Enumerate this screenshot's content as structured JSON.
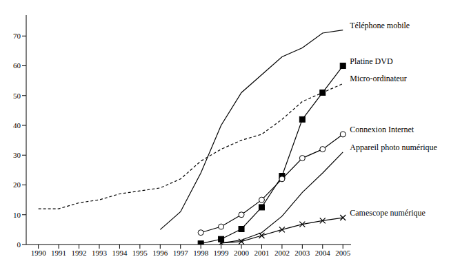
{
  "chart_data": {
    "type": "line",
    "x": [
      1990,
      1991,
      1992,
      1993,
      1994,
      1995,
      1996,
      1997,
      1998,
      1999,
      2000,
      2001,
      2002,
      2003,
      2004,
      2005
    ],
    "xlim": [
      1989.4,
      2005.4
    ],
    "xticks": [
      1990,
      1991,
      1992,
      1993,
      1994,
      1995,
      1996,
      1997,
      1998,
      1999,
      2000,
      2001,
      2002,
      2003,
      2004,
      2005
    ],
    "ylim": [
      0,
      77
    ],
    "yticks": [
      0,
      10,
      20,
      30,
      40,
      50,
      60,
      70
    ],
    "grid": false,
    "series": [
      {
        "name": "Téléphone mobile",
        "color": "#000000",
        "marker": "none",
        "line_style": "solid",
        "values": [
          null,
          null,
          null,
          null,
          null,
          null,
          5,
          11,
          24,
          40,
          51,
          57,
          63,
          66,
          71,
          72
        ]
      },
      {
        "name": "Platine DVD",
        "color": "#000000",
        "marker": "square",
        "line_style": "solid",
        "values": [
          null,
          null,
          null,
          null,
          null,
          null,
          null,
          null,
          0.3,
          1.8,
          5.2,
          12.5,
          23,
          42,
          51,
          60
        ]
      },
      {
        "name": "Micro-ordinateur",
        "color": "#000000",
        "marker": "none",
        "line_style": "dashed",
        "values": [
          12,
          12,
          14,
          15,
          17,
          18,
          19,
          22,
          28,
          32,
          35,
          37,
          42,
          48,
          51,
          54
        ]
      },
      {
        "name": "Connexion Internet",
        "color": "#000000",
        "marker": "circle",
        "line_style": "solid",
        "values": [
          null,
          null,
          null,
          null,
          null,
          null,
          null,
          null,
          4,
          6,
          10,
          15,
          22,
          29,
          32,
          37
        ]
      },
      {
        "name": "Appareil photo numérique",
        "color": "#000000",
        "marker": "none",
        "line_style": "solid",
        "values": [
          null,
          null,
          null,
          null,
          null,
          null,
          null,
          null,
          null,
          0.5,
          1.5,
          4,
          9.5,
          17.5,
          24,
          31
        ]
      },
      {
        "name": "Camescope numérique",
        "color": "#000000",
        "marker": "x",
        "line_style": "solid",
        "values": [
          null,
          null,
          null,
          null,
          null,
          null,
          null,
          null,
          null,
          0.5,
          1,
          3,
          5,
          6.8,
          8,
          9
        ]
      }
    ]
  }
}
